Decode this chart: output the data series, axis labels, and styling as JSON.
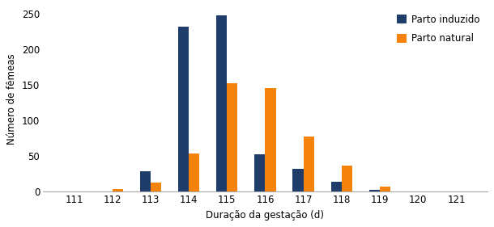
{
  "categories": [
    111,
    112,
    113,
    114,
    115,
    116,
    117,
    118,
    119,
    120,
    121
  ],
  "parto_induzido": [
    0,
    0,
    28,
    232,
    248,
    52,
    32,
    14,
    2,
    0,
    0
  ],
  "parto_natural": [
    0,
    3,
    13,
    53,
    152,
    146,
    77,
    36,
    7,
    0,
    0
  ],
  "color_induzido": "#1F3D6B",
  "color_natural": "#F5820A",
  "xlabel": "Duração da gestação (d)",
  "ylabel": "Número de fêmeas",
  "legend_induzido": "Parto induzido",
  "legend_natural": "Parto natural",
  "ylim": [
    0,
    260
  ],
  "yticks": [
    0,
    50,
    100,
    150,
    200,
    250
  ],
  "bar_width": 0.28
}
